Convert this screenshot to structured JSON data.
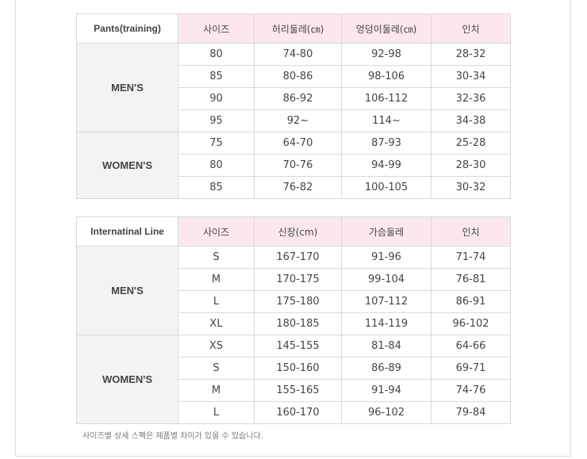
{
  "table1": {
    "title": "Pants(training)",
    "headers": [
      "사이즈",
      "허리둘레(㎝)",
      "엉덩이둘레(㎝)",
      "인치"
    ],
    "groups": [
      {
        "label": "MEN'S",
        "rows": [
          [
            "80",
            "74-80",
            "92-98",
            "28-32"
          ],
          [
            "85",
            "80-86",
            "98-106",
            "30-34"
          ],
          [
            "90",
            "86-92",
            "106-112",
            "32-36"
          ],
          [
            "95",
            "92~",
            "114~",
            "34-38"
          ]
        ]
      },
      {
        "label": "WOMEN'S",
        "rows": [
          [
            "75",
            "64-70",
            "87-93",
            "25-28"
          ],
          [
            "80",
            "70-76",
            "94-99",
            "28-30"
          ],
          [
            "85",
            "76-82",
            "100-105",
            "30-32"
          ]
        ]
      }
    ]
  },
  "table2": {
    "title": "Internatinal Line",
    "headers": [
      "사이즈",
      "신장(cm)",
      "가슴둘레",
      "인치"
    ],
    "groups": [
      {
        "label": "MEN'S",
        "rows": [
          [
            "S",
            "167-170",
            "91-96",
            "71-74"
          ],
          [
            "M",
            "170-175",
            "99-104",
            "76-81"
          ],
          [
            "L",
            "175-180",
            "107-112",
            "86-91"
          ],
          [
            "XL",
            "180-185",
            "114-119",
            "96-102"
          ]
        ]
      },
      {
        "label": "WOMEN'S",
        "rows": [
          [
            "XS",
            "145-155",
            "81-84",
            "64-66"
          ],
          [
            "S",
            "150-160",
            "86-89",
            "69-71"
          ],
          [
            "M",
            "155-165",
            "91-94",
            "74-76"
          ],
          [
            "L",
            "160-170",
            "96-102",
            "79-84"
          ]
        ]
      }
    ]
  },
  "note": "사이즈별 상세 스펙은 제품별 차이가 있을 수 있습니다."
}
